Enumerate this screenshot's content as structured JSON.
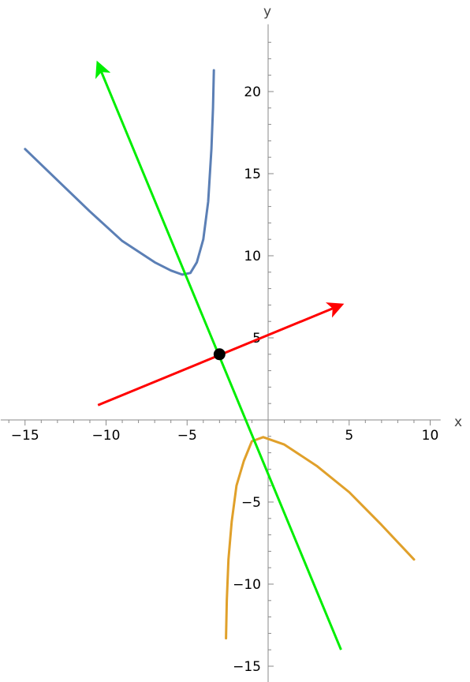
{
  "chart_data": {
    "type": "line",
    "xlabel": "x",
    "ylabel": "y",
    "xlim": [
      -16.5,
      10.5
    ],
    "ylim": [
      -16,
      24
    ],
    "x_ticks": [
      -15,
      -10,
      -5,
      5,
      10
    ],
    "y_ticks": [
      -15,
      -10,
      -5,
      5,
      10,
      15,
      20
    ],
    "x_tick_labels": [
      "−15",
      "−10",
      "−5",
      "5",
      "10"
    ],
    "y_tick_labels": [
      "−15",
      "−10",
      "−5",
      "5",
      "10",
      "15",
      "20"
    ],
    "grid": false,
    "series": [
      {
        "kind": "curve",
        "color": "#5b7fb5",
        "points": [
          [
            -15,
            16.5
          ],
          [
            -13,
            14.6
          ],
          [
            -11,
            12.7
          ],
          [
            -9,
            10.9
          ],
          [
            -7,
            9.6
          ],
          [
            -6,
            9.1
          ],
          [
            -5.3,
            8.85
          ],
          [
            -4.8,
            8.95
          ],
          [
            -4.4,
            9.6
          ],
          [
            -4.0,
            11.0
          ],
          [
            -3.7,
            13.3
          ],
          [
            -3.5,
            16.5
          ],
          [
            -3.4,
            19.0
          ],
          [
            -3.35,
            21.3
          ]
        ]
      },
      {
        "kind": "curve",
        "color": "#e0a02a",
        "points": [
          [
            -2.6,
            -13.3
          ],
          [
            -2.55,
            -11
          ],
          [
            -2.45,
            -8.5
          ],
          [
            -2.25,
            -6.2
          ],
          [
            -1.95,
            -4.0
          ],
          [
            -1.5,
            -2.5
          ],
          [
            -1,
            -1.3
          ],
          [
            -0.3,
            -1.05
          ],
          [
            1,
            -1.5
          ],
          [
            3,
            -2.8
          ],
          [
            5,
            -4.4
          ],
          [
            7,
            -6.4
          ],
          [
            9,
            -8.5
          ]
        ]
      },
      {
        "kind": "arrow",
        "color": "#ff0000",
        "from": [
          -10.5,
          0.9
        ],
        "to": [
          4.5,
          7.0
        ]
      },
      {
        "kind": "arrow",
        "color": "#00ee00",
        "from": [
          4.5,
          -14
        ],
        "to": [
          -10.5,
          21.7
        ]
      }
    ],
    "points": [
      {
        "x": -3,
        "y": 4,
        "color": "#000000"
      }
    ]
  }
}
